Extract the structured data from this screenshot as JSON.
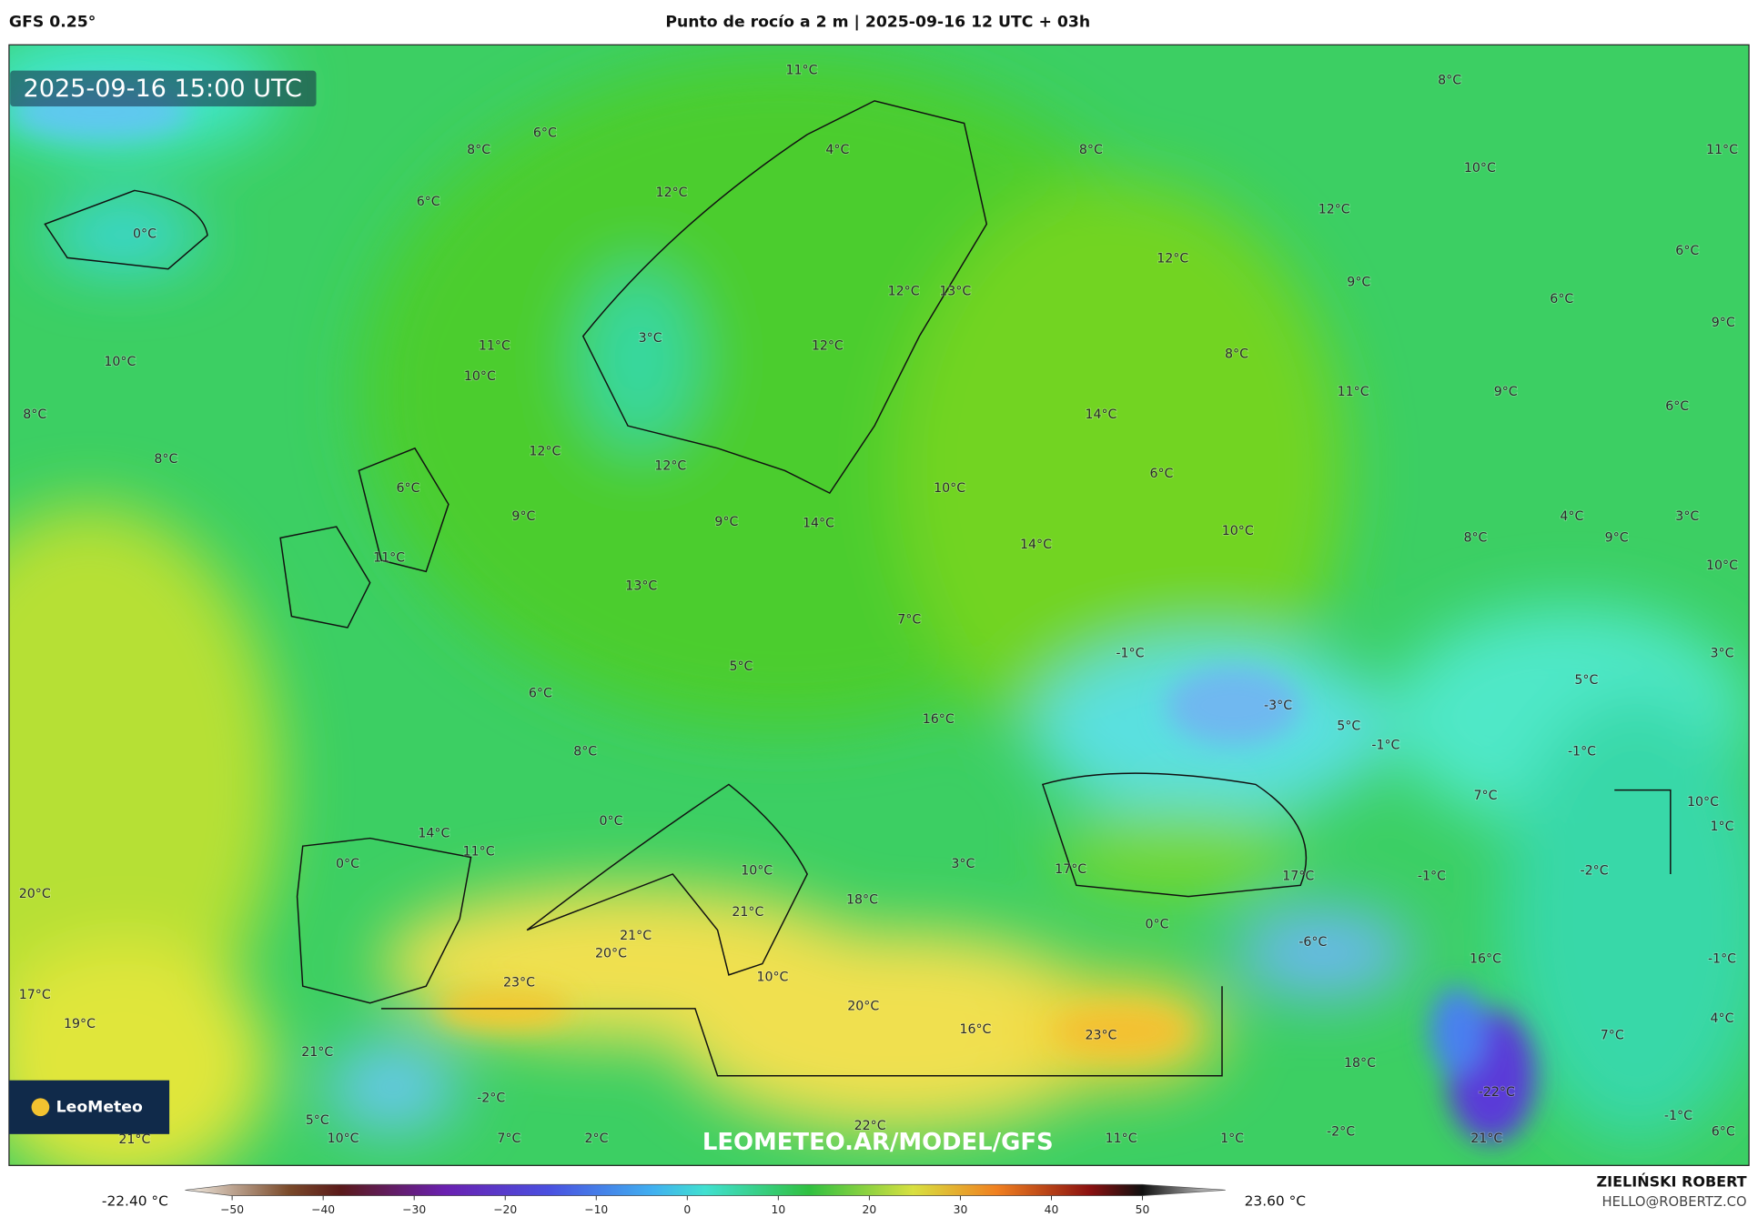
{
  "header": {
    "model": "GFS 0.25°",
    "title": "Punto de rocío a 2 m | 2025-09-16 12 UTC + 03h"
  },
  "map": {
    "timestamp": "2025-09-16 15:00 UTC",
    "logo": "LeoMeteo",
    "watermark": "LEOMETEO.AR/MODEL/GFS",
    "labels": [
      "11°C",
      "6°C",
      "8°C",
      "4°C",
      "8°C",
      "8°C",
      "10°C",
      "11°C",
      "6°C",
      "12°C",
      "12°C",
      "0°C",
      "12°C",
      "9°C",
      "6°C",
      "12°C",
      "13°C",
      "6°C",
      "9°C",
      "3°C",
      "12°C",
      "11°C",
      "10°C",
      "10°C",
      "8°C",
      "11°C",
      "9°C",
      "8°C",
      "14°C",
      "6°C",
      "12°C",
      "8°C",
      "12°C",
      "10°C",
      "6°C",
      "6°C",
      "9°C",
      "9°C",
      "14°C",
      "4°C",
      "3°C",
      "10°C",
      "8°C",
      "9°C",
      "14°C",
      "11°C",
      "10°C",
      "13°C",
      "7°C",
      "-1°C",
      "3°C",
      "5°C",
      "5°C",
      "6°C",
      "-3°C",
      "16°C",
      "5°C",
      "-1°C",
      "-1°C",
      "8°C",
      "7°C",
      "10°C",
      "0°C",
      "1°C",
      "14°C",
      "11°C",
      "0°C",
      "3°C",
      "17°C",
      "10°C",
      "-2°C",
      "17°C",
      "-1°C",
      "20°C",
      "18°C",
      "21°C",
      "0°C",
      "21°C",
      "-6°C",
      "20°C",
      "16°C",
      "-1°C",
      "10°C",
      "23°C",
      "17°C",
      "20°C",
      "19°C",
      "16°C",
      "23°C",
      "4°C",
      "7°C",
      "21°C",
      "18°C",
      "-22°C",
      "-2°C",
      "-1°C",
      "5°C",
      "22°C",
      "-2°C",
      "6°C",
      "10°C",
      "7°C",
      "2°C",
      "11°C",
      "1°C",
      "21°C",
      "21°C"
    ]
  },
  "colorbar": {
    "min": "-22.40 °C",
    "max": "23.60 °C",
    "ticks": [
      "−50",
      "−40",
      "−30",
      "−20",
      "−10",
      "0",
      "10",
      "20",
      "30",
      "40",
      "50"
    ]
  },
  "footer": {
    "author": "ZIELIŃSKI ROBERT",
    "email": "HELLO@ROBERTZ.CO"
  }
}
